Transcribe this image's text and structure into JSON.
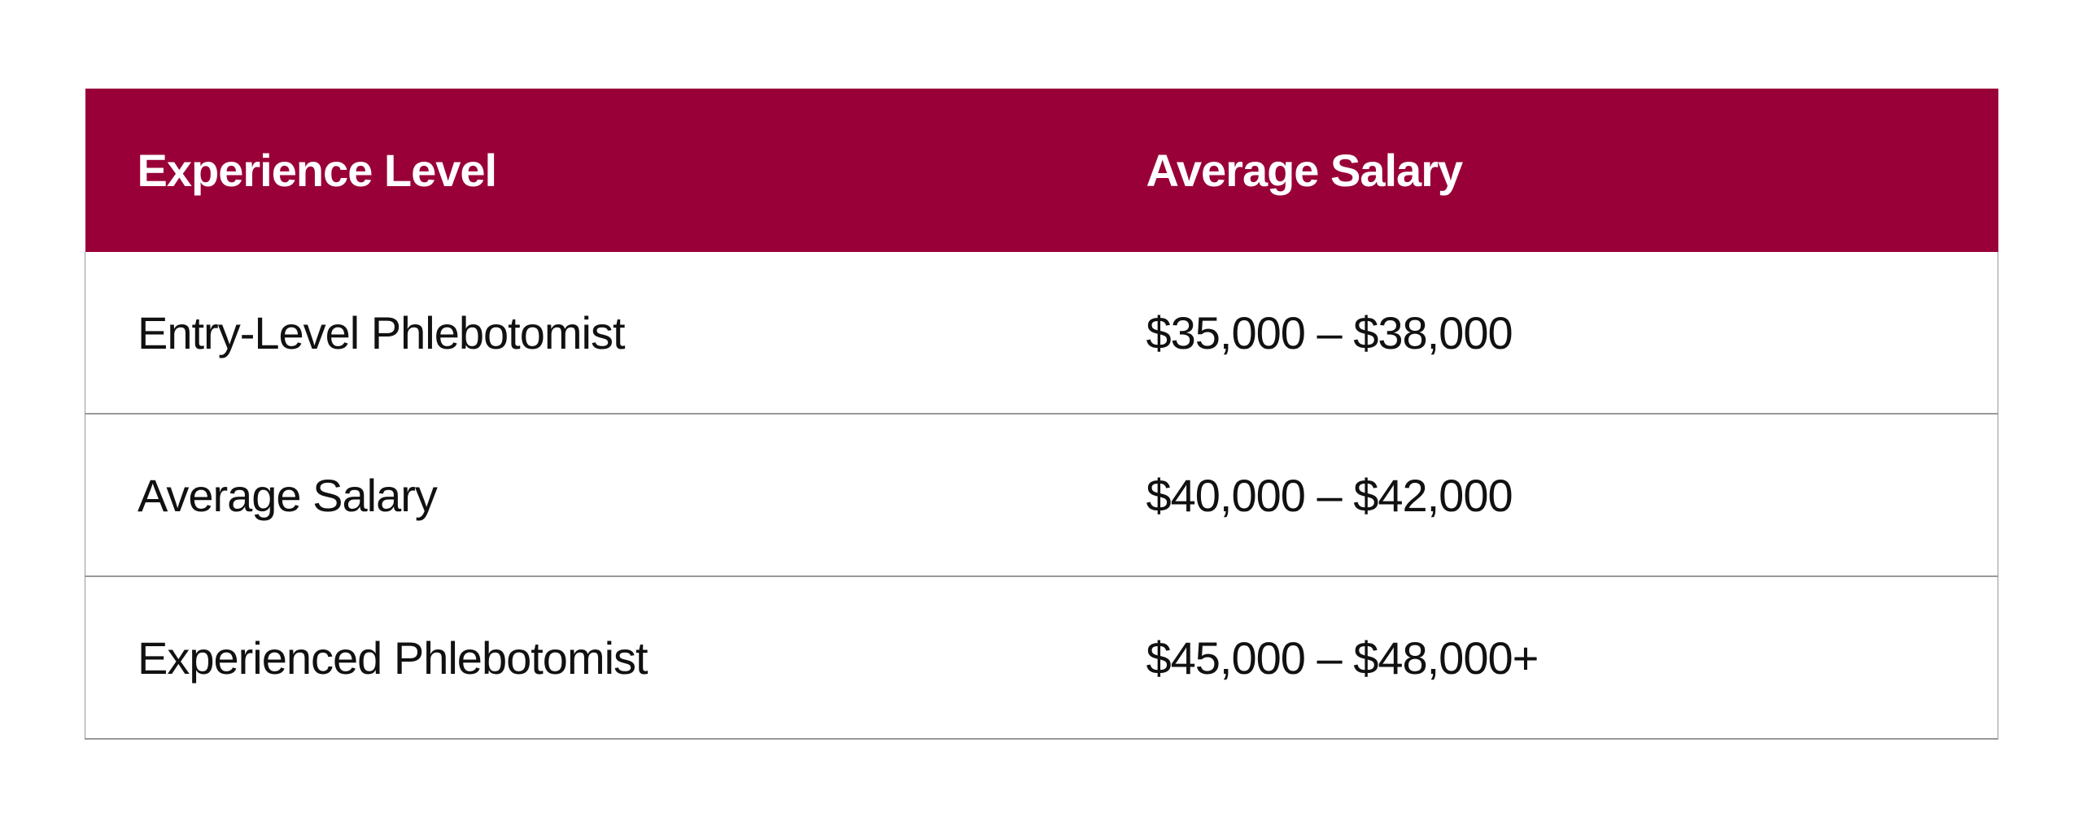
{
  "table": {
    "header": [
      "Experience Level",
      "Average Salary"
    ],
    "rows": [
      [
        "Entry-Level Phlebotomist",
        "$35,000 – $38,000"
      ],
      [
        "Average Salary",
        "$40,000 – $42,000"
      ],
      [
        "Experienced Phlebotomist",
        "$45,000 – $48,000+"
      ]
    ]
  }
}
